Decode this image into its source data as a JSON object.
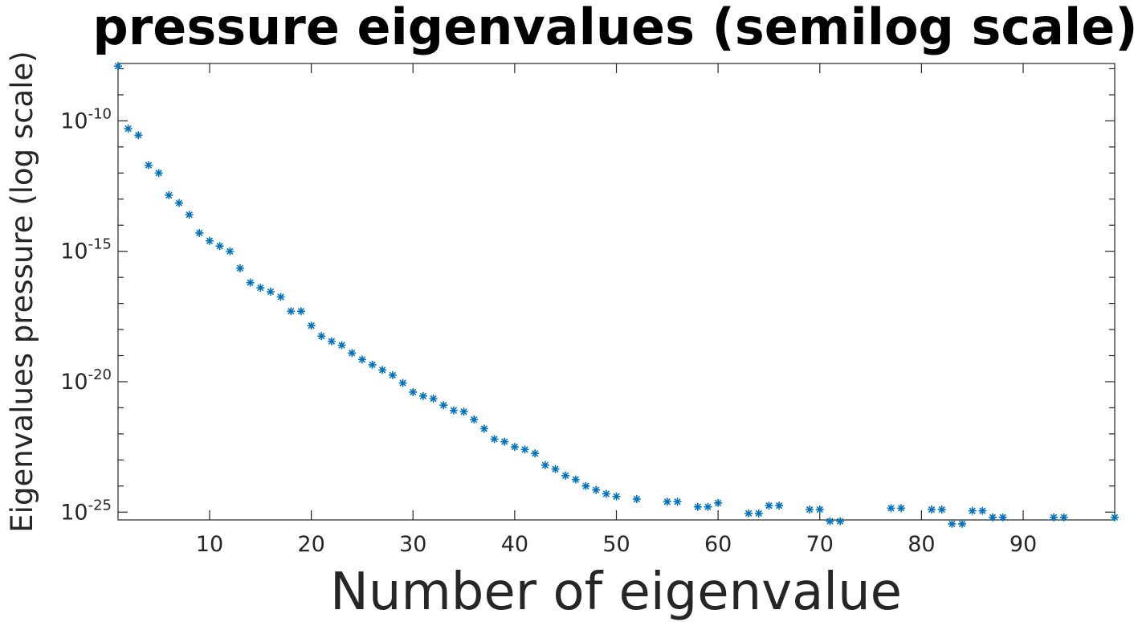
{
  "chart_data": {
    "type": "scatter",
    "title": "pressure eigenvalues (semilog scale)",
    "xlabel": "Number of eigenvalue",
    "ylabel": "Eigenvalues pressure (log scale)",
    "x_scale": "linear",
    "y_scale": "log",
    "xlim": [
      1,
      99
    ],
    "ylim_exponent": [
      -25.3,
      -7.8
    ],
    "x_ticks": [
      10,
      20,
      30,
      40,
      50,
      60,
      70,
      80,
      90
    ],
    "y_ticks_exponent": [
      -25,
      -20,
      -15,
      -10
    ],
    "y_tick_labels": [
      {
        "base": "10",
        "exp": "-25"
      },
      {
        "base": "10",
        "exp": "-20"
      },
      {
        "base": "10",
        "exp": "-15"
      },
      {
        "base": "10",
        "exp": "-10"
      }
    ],
    "grid": false,
    "box": true,
    "marker": "asterisk",
    "color": "#0072BD",
    "series": [
      {
        "x": [
          1,
          2,
          3,
          4,
          5,
          6,
          7,
          8,
          9,
          10,
          11,
          12,
          13,
          14,
          15,
          16,
          17,
          18,
          19,
          20,
          21,
          22,
          23,
          24,
          25,
          26,
          27,
          28,
          29,
          30,
          31,
          32,
          33,
          34,
          35,
          36,
          37,
          38,
          39,
          40,
          41,
          42,
          43,
          44,
          45,
          46,
          47,
          48,
          49,
          50,
          52,
          55,
          56,
          58,
          59,
          60,
          63,
          64,
          65,
          66,
          69,
          70,
          71,
          72,
          77,
          78,
          81,
          82,
          83,
          84,
          85,
          86,
          87,
          88,
          93,
          94,
          99
        ],
        "y_exponent": [
          -7.9,
          -10.3,
          -10.55,
          -11.7,
          -12.0,
          -12.85,
          -13.15,
          -13.6,
          -14.3,
          -14.6,
          -14.8,
          -15.0,
          -15.65,
          -16.2,
          -16.4,
          -16.55,
          -16.75,
          -17.3,
          -17.3,
          -17.85,
          -18.25,
          -18.45,
          -18.6,
          -18.9,
          -19.15,
          -19.35,
          -19.55,
          -19.75,
          -20.05,
          -20.4,
          -20.55,
          -20.65,
          -20.9,
          -21.1,
          -21.15,
          -21.45,
          -21.8,
          -22.2,
          -22.3,
          -22.5,
          -22.6,
          -22.75,
          -23.2,
          -23.35,
          -23.6,
          -23.75,
          -24.0,
          -24.15,
          -24.3,
          -24.4,
          -24.5,
          -24.6,
          -24.6,
          -24.8,
          -24.8,
          -24.65,
          -25.05,
          -25.05,
          -24.75,
          -24.75,
          -24.9,
          -24.9,
          -25.35,
          -25.35,
          -24.85,
          -24.85,
          -24.9,
          -24.9,
          -25.45,
          -25.45,
          -24.95,
          -24.95,
          -25.2,
          -25.2,
          -25.2,
          -25.2,
          -25.2
        ]
      }
    ]
  }
}
